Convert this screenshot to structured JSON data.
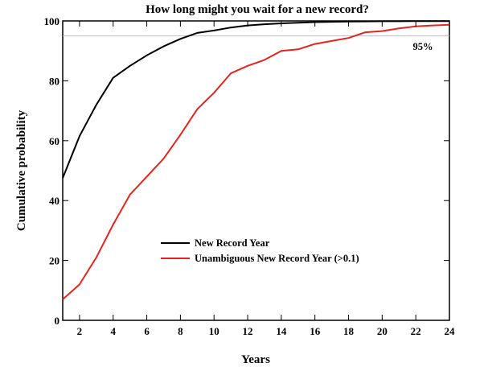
{
  "chart_data": {
    "type": "line",
    "title": "How long might you wait for a new record?",
    "xlabel": "Years",
    "ylabel": "Cumulative probability",
    "xlim": [
      1,
      24
    ],
    "ylim": [
      0,
      100
    ],
    "xticks": [
      2,
      4,
      6,
      8,
      10,
      12,
      14,
      16,
      18,
      20,
      22,
      24
    ],
    "yticks": [
      0,
      20,
      40,
      60,
      80,
      100
    ],
    "grid": false,
    "legend_position": "lower-center",
    "reference_line": {
      "y": 95,
      "label": "95%",
      "color": "#bdbdbd"
    },
    "series": [
      {
        "name": "New Record Year",
        "color": "#000000",
        "x": [
          1,
          2,
          3,
          4,
          5,
          6,
          7,
          8,
          9,
          10,
          11,
          12,
          13,
          14,
          15,
          16,
          17,
          18,
          19,
          20,
          21,
          22,
          23,
          24
        ],
        "y": [
          47.5,
          61.5,
          72,
          81,
          85,
          88.5,
          91.5,
          94,
          96,
          96.8,
          97.8,
          98.5,
          98.9,
          99.2,
          99.4,
          99.6,
          99.7,
          99.8,
          99.85,
          99.9,
          99.9,
          99.95,
          99.95,
          99.95
        ]
      },
      {
        "name": "Unambiguous New Record Year (>0.1)",
        "color": "#e8231f",
        "x": [
          1,
          2,
          3,
          4,
          5,
          6,
          7,
          8,
          9,
          10,
          11,
          12,
          13,
          14,
          15,
          16,
          17,
          18,
          19,
          20,
          21,
          22,
          23,
          24
        ],
        "y": [
          7,
          12,
          21,
          32,
          42,
          48,
          54,
          62,
          70.5,
          76,
          82.5,
          85,
          87,
          90,
          90.5,
          92.3,
          93.3,
          94.3,
          96.2,
          96.6,
          97.5,
          98.2,
          98.5,
          98.7
        ]
      }
    ]
  }
}
